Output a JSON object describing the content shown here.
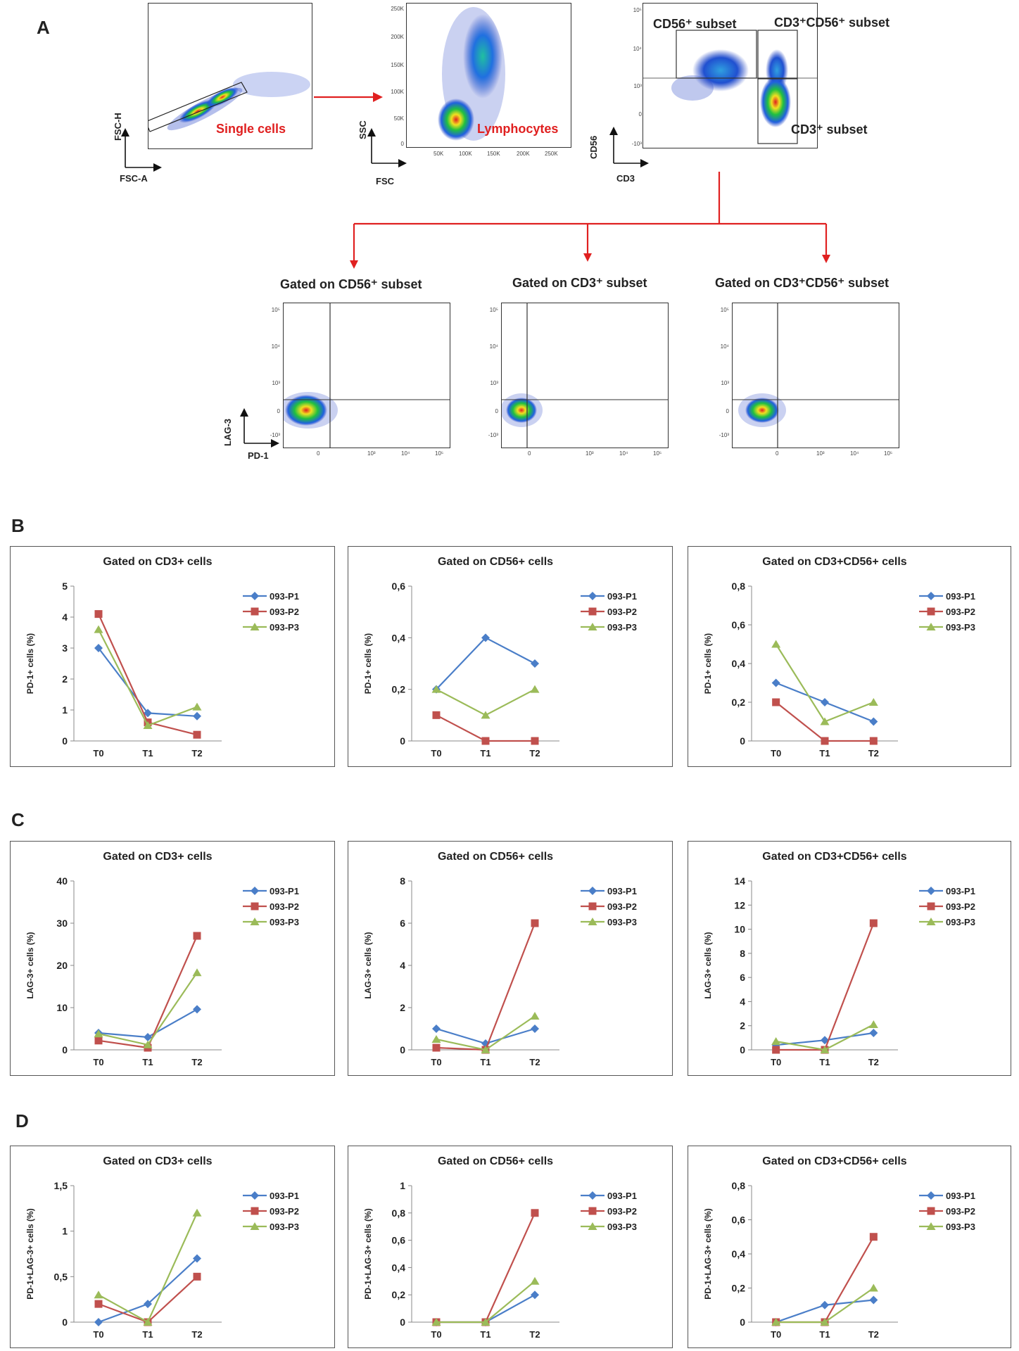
{
  "panel_letters": {
    "a": "A",
    "b": "B",
    "c": "C",
    "d": "D"
  },
  "flow": {
    "p1": {
      "y_axis": "FSC-H",
      "x_axis": "FSC-A",
      "gate": "Single cells"
    },
    "p2": {
      "y_axis": "SSC",
      "x_axis": "FSC",
      "gate": "Lymphocytes",
      "yticks": [
        "250K",
        "200K",
        "150K",
        "100K",
        "50K",
        "0"
      ],
      "xticks": [
        "50K",
        "100K",
        "150K",
        "200K",
        "250K"
      ]
    },
    "p3": {
      "y_axis": "CD56",
      "x_axis": "CD3",
      "cd56_subset": "CD56⁺ subset",
      "cd3cd56_subset": "CD3⁺CD56⁺ subset",
      "cd3_subset": "CD3⁺ subset"
    },
    "gated_titles": [
      "Gated on CD56⁺ subset",
      "Gated on CD3⁺ subset",
      "Gated on CD3⁺CD56⁺ subset"
    ],
    "lag_axis": "LAG-3",
    "pd_axis": "PD-1",
    "log_yticks": [
      "10⁵",
      "10⁴",
      "10³",
      "0",
      "-10³"
    ],
    "log_xticks": [
      "0",
      "10³",
      "10⁴",
      "10⁵"
    ]
  },
  "colors": {
    "p1": "#4a7ec8",
    "p2": "#c0504d",
    "p3": "#9bbb59",
    "gate_red": "#e02020"
  },
  "chart_data": [
    {
      "type": "line",
      "row": "B",
      "title": "Gated on CD3+ cells",
      "ylabel": "PD-1+ cells (%)",
      "categories": [
        "T0",
        "T1",
        "T2"
      ],
      "ylim": [
        0,
        5
      ],
      "yticks": [
        "0",
        "1",
        "2",
        "3",
        "4",
        "5"
      ],
      "series": [
        {
          "name": "093-P1",
          "values": [
            3.0,
            0.9,
            0.8
          ]
        },
        {
          "name": "093-P2",
          "values": [
            4.1,
            0.6,
            0.2
          ]
        },
        {
          "name": "093-P3",
          "values": [
            3.6,
            0.5,
            1.1
          ]
        }
      ]
    },
    {
      "type": "line",
      "row": "B",
      "title": "Gated on CD56+ cells",
      "ylabel": "PD-1+ cells (%)",
      "categories": [
        "T0",
        "T1",
        "T2"
      ],
      "ylim": [
        0,
        0.6
      ],
      "yticks": [
        "0",
        "0,2",
        "0,4",
        "0,6"
      ],
      "series": [
        {
          "name": "093-P1",
          "values": [
            0.2,
            0.4,
            0.3
          ]
        },
        {
          "name": "093-P2",
          "values": [
            0.1,
            0.0,
            0.0
          ]
        },
        {
          "name": "093-P3",
          "values": [
            0.2,
            0.1,
            0.2
          ]
        }
      ]
    },
    {
      "type": "line",
      "row": "B",
      "title": "Gated on CD3+CD56+ cells",
      "ylabel": "PD-1+ cells (%)",
      "categories": [
        "T0",
        "T1",
        "T2"
      ],
      "ylim": [
        0,
        0.8
      ],
      "yticks": [
        "0",
        "0,2",
        "0,4",
        "0,6",
        "0,8"
      ],
      "series": [
        {
          "name": "093-P1",
          "values": [
            0.3,
            0.2,
            0.1
          ]
        },
        {
          "name": "093-P2",
          "values": [
            0.2,
            0.0,
            0.0
          ]
        },
        {
          "name": "093-P3",
          "values": [
            0.5,
            0.1,
            0.2
          ]
        }
      ]
    },
    {
      "type": "line",
      "row": "C",
      "title": "Gated on CD3+ cells",
      "ylabel": "LAG-3+ cells (%)",
      "categories": [
        "T0",
        "T1",
        "T2"
      ],
      "ylim": [
        0,
        40
      ],
      "yticks": [
        "0",
        "10",
        "20",
        "30",
        "40"
      ],
      "series": [
        {
          "name": "093-P1",
          "values": [
            4,
            3,
            9.6
          ]
        },
        {
          "name": "093-P2",
          "values": [
            2.2,
            0.5,
            27
          ]
        },
        {
          "name": "093-P3",
          "values": [
            3.8,
            1.2,
            18.3
          ]
        }
      ]
    },
    {
      "type": "line",
      "row": "C",
      "title": "Gated on CD56+ cells",
      "ylabel": "LAG-3+ cells (%)",
      "categories": [
        "T0",
        "T1",
        "T2"
      ],
      "ylim": [
        0,
        8
      ],
      "yticks": [
        "0",
        "2",
        "4",
        "6",
        "8"
      ],
      "series": [
        {
          "name": "093-P1",
          "values": [
            1.0,
            0.3,
            1.0
          ]
        },
        {
          "name": "093-P2",
          "values": [
            0.1,
            0.0,
            6.0
          ]
        },
        {
          "name": "093-P3",
          "values": [
            0.5,
            0.0,
            1.6
          ]
        }
      ]
    },
    {
      "type": "line",
      "row": "C",
      "title": "Gated on CD3+CD56+ cells",
      "ylabel": "LAG-3+ cells (%)",
      "categories": [
        "T0",
        "T1",
        "T2"
      ],
      "ylim": [
        0,
        14
      ],
      "yticks": [
        "0",
        "2",
        "4",
        "6",
        "8",
        "10",
        "12",
        "14"
      ],
      "series": [
        {
          "name": "093-P1",
          "values": [
            0.4,
            0.8,
            1.4
          ]
        },
        {
          "name": "093-P2",
          "values": [
            0.0,
            0.0,
            10.5
          ]
        },
        {
          "name": "093-P3",
          "values": [
            0.7,
            0.0,
            2.1
          ]
        }
      ]
    },
    {
      "type": "line",
      "row": "D",
      "title": "Gated on CD3+ cells",
      "ylabel": "PD-1+LAG-3+ cells (%)",
      "categories": [
        "T0",
        "T1",
        "T2"
      ],
      "ylim": [
        0,
        1.5
      ],
      "yticks": [
        "0",
        "0,5",
        "1",
        "1,5"
      ],
      "series": [
        {
          "name": "093-P1",
          "values": [
            0.0,
            0.2,
            0.7
          ]
        },
        {
          "name": "093-P2",
          "values": [
            0.2,
            0.0,
            0.5
          ]
        },
        {
          "name": "093-P3",
          "values": [
            0.3,
            0.0,
            1.2
          ]
        }
      ]
    },
    {
      "type": "line",
      "row": "D",
      "title": "Gated on CD56+ cells",
      "ylabel": "PD-1+LAG-3+ cells (%)",
      "categories": [
        "T0",
        "T1",
        "T2"
      ],
      "ylim": [
        0,
        1
      ],
      "yticks": [
        "0",
        "0,2",
        "0,4",
        "0,6",
        "0,8",
        "1"
      ],
      "series": [
        {
          "name": "093-P1",
          "values": [
            0.0,
            0.0,
            0.2
          ]
        },
        {
          "name": "093-P2",
          "values": [
            0.0,
            0.0,
            0.8
          ]
        },
        {
          "name": "093-P3",
          "values": [
            0.0,
            0.0,
            0.3
          ]
        }
      ]
    },
    {
      "type": "line",
      "row": "D",
      "title": "Gated on CD3+CD56+ cells",
      "ylabel": "PD-1+LAG-3+ cells (%)",
      "categories": [
        "T0",
        "T1",
        "T2"
      ],
      "ylim": [
        0,
        0.8
      ],
      "yticks": [
        "0",
        "0,2",
        "0,4",
        "0,6",
        "0,8"
      ],
      "series": [
        {
          "name": "093-P1",
          "values": [
            0.0,
            0.1,
            0.13
          ]
        },
        {
          "name": "093-P2",
          "values": [
            0.0,
            0.0,
            0.5
          ]
        },
        {
          "name": "093-P3",
          "values": [
            0.0,
            0.0,
            0.2
          ]
        }
      ]
    }
  ]
}
